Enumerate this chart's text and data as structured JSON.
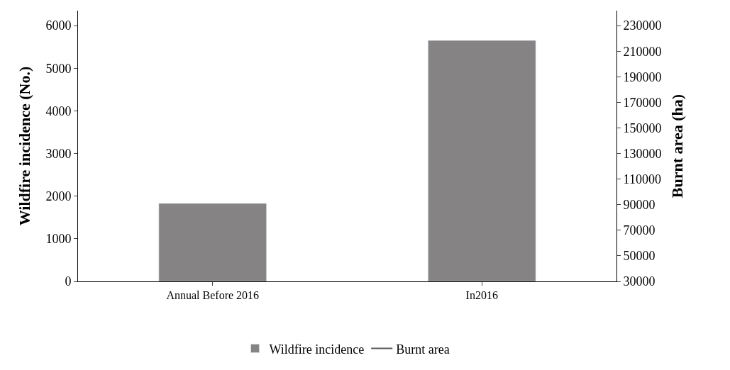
{
  "chart_data": {
    "type": "bar",
    "categories": [
      "Annual Before 2016",
      "In2016"
    ],
    "series": [
      {
        "name": "Wildfire incidence",
        "color": "#858384",
        "values": [
          1830,
          5650
        ]
      },
      {
        "name": "Burnt area",
        "type": "line",
        "axis": "y2",
        "color": "#595959",
        "values": [
          null,
          null
        ]
      }
    ],
    "ylabel": "Wildfire incidence (No.)",
    "y2label": "Burnt area (ha)",
    "ylim": [
      0,
      6350
    ],
    "yticks": [
      0,
      1000,
      2000,
      3000,
      4000,
      5000,
      6000
    ],
    "y2lim": [
      30000,
      241700
    ],
    "y2ticks": [
      30000,
      50000,
      70000,
      90000,
      110000,
      130000,
      150000,
      170000,
      190000,
      210000,
      230000
    ],
    "legend": "bottom"
  }
}
